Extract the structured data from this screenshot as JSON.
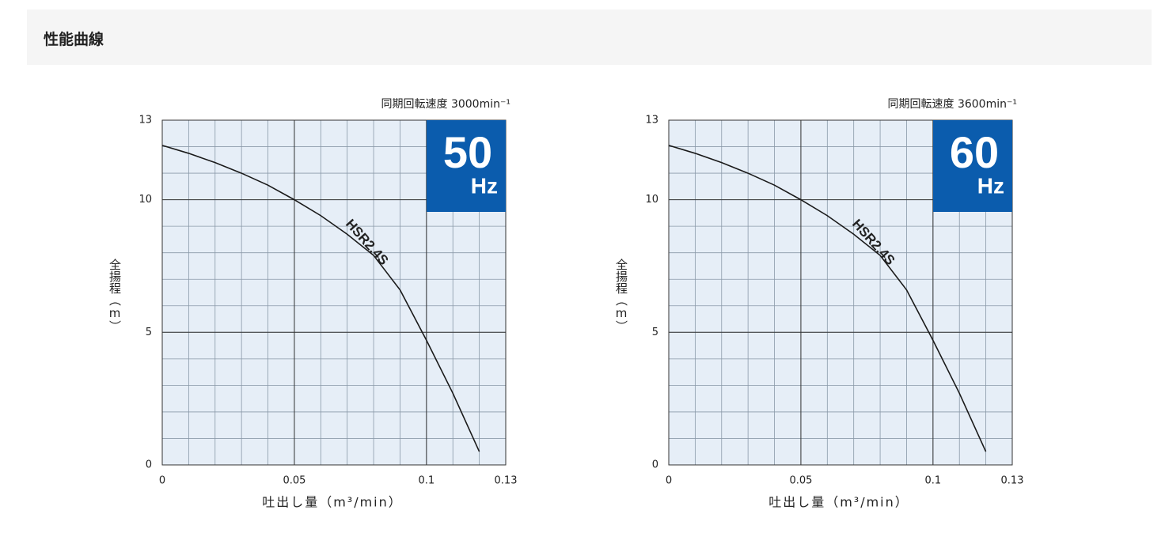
{
  "header": {
    "title": "性能曲線"
  },
  "chart_data": [
    {
      "type": "line",
      "title": "同期回転速度 3000min⁻¹",
      "badge": {
        "value": "50",
        "unit": "Hz"
      },
      "x_label": "吐出し量（m³/min）",
      "y_label": "全揚程（m）",
      "x": [
        0,
        0.01,
        0.02,
        0.03,
        0.04,
        0.05,
        0.06,
        0.07,
        0.08,
        0.09,
        0.1,
        0.11,
        0.12
      ],
      "series": [
        {
          "name": "HSR2.4S",
          "color": "#1a1a1a",
          "values": [
            12.05,
            11.75,
            11.4,
            11.0,
            10.55,
            10.0,
            9.4,
            8.7,
            7.9,
            6.6,
            4.7,
            2.7,
            0.5
          ]
        }
      ],
      "xlim": [
        0,
        0.13
      ],
      "ylim": [
        0,
        13
      ],
      "xticks": [
        0,
        0.05,
        0.1,
        0.13
      ],
      "yticks": [
        0,
        5,
        10,
        13
      ],
      "grid": true,
      "minor_grid_step": {
        "x": 0.01,
        "y": 1
      }
    },
    {
      "type": "line",
      "title": "同期回転速度 3600min⁻¹",
      "badge": {
        "value": "60",
        "unit": "Hz"
      },
      "x_label": "吐出し量（m³/min）",
      "y_label": "全揚程（m）",
      "x": [
        0,
        0.01,
        0.02,
        0.03,
        0.04,
        0.05,
        0.06,
        0.07,
        0.08,
        0.09,
        0.1,
        0.11,
        0.12
      ],
      "series": [
        {
          "name": "HSR2.4S",
          "color": "#1a1a1a",
          "values": [
            12.05,
            11.75,
            11.4,
            11.0,
            10.55,
            10.0,
            9.4,
            8.7,
            7.9,
            6.6,
            4.7,
            2.7,
            0.5
          ]
        }
      ],
      "xlim": [
        0,
        0.13
      ],
      "ylim": [
        0,
        13
      ],
      "xticks": [
        0,
        0.05,
        0.1,
        0.13
      ],
      "yticks": [
        0,
        5,
        10,
        13
      ],
      "grid": true,
      "minor_grid_step": {
        "x": 0.01,
        "y": 1
      }
    }
  ]
}
